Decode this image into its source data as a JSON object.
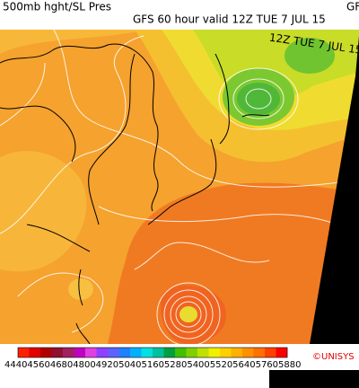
{
  "header": {
    "title": "500mb hght/SL Pres",
    "subtitle": "GFS 60 hour valid 12Z TUE  7 JUL 15",
    "corner": "GF"
  },
  "map": {
    "overlay_text": "12Z TUE  7 JUL 15"
  },
  "legend": {
    "labels": [
      "4440",
      "4560",
      "4680",
      "4800",
      "4920",
      "5040",
      "5160",
      "5280",
      "5400",
      "5520",
      "5640",
      "5760",
      "5880"
    ],
    "colors": [
      "#ff2000",
      "#e00000",
      "#b00000",
      "#901030",
      "#a02060",
      "#c000c0",
      "#e040e0",
      "#9040ff",
      "#6060ff",
      "#2080ff",
      "#00b0ff",
      "#00e0e0",
      "#00c0a0",
      "#00a040",
      "#40c000",
      "#80d000",
      "#c0e000",
      "#f0f000",
      "#ffd000",
      "#ffb000",
      "#ff9000",
      "#ff7000",
      "#ff4000",
      "#ff0000"
    ],
    "credit": "©UNISYS"
  }
}
